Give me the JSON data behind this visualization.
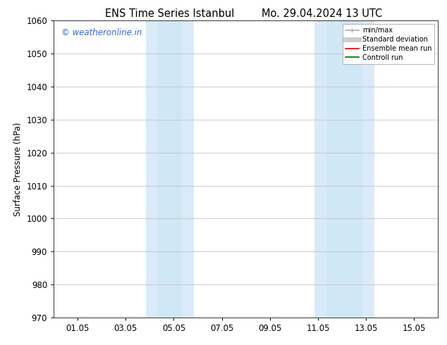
{
  "title_left": "ENS Time Series Istanbul",
  "title_right": "Mo. 29.04.2024 13 UTC",
  "ylabel": "Surface Pressure (hPa)",
  "ylim": [
    970,
    1060
  ],
  "yticks": [
    970,
    980,
    990,
    1000,
    1010,
    1020,
    1030,
    1040,
    1050,
    1060
  ],
  "xlim": [
    0,
    16
  ],
  "xtick_positions": [
    1,
    3,
    5,
    7,
    9,
    11,
    13,
    15
  ],
  "xtick_labels": [
    "01.05",
    "03.05",
    "05.05",
    "07.05",
    "09.05",
    "11.05",
    "13.05",
    "15.05"
  ],
  "shaded_bands": [
    {
      "xmin": 3.85,
      "xmax": 4.35,
      "color": "#daeaf8"
    },
    {
      "xmin": 4.35,
      "xmax": 5.35,
      "color": "#d0e8f5"
    },
    {
      "xmin": 5.35,
      "xmax": 5.85,
      "color": "#daeaf8"
    },
    {
      "xmin": 10.85,
      "xmax": 11.35,
      "color": "#daeaf8"
    },
    {
      "xmin": 11.35,
      "xmax": 12.85,
      "color": "#d0e8f5"
    },
    {
      "xmin": 12.85,
      "xmax": 13.35,
      "color": "#daeaf8"
    }
  ],
  "watermark_text": "© weatheronline.in",
  "watermark_color": "#3366cc",
  "legend_items": [
    {
      "label": "min/max",
      "color": "#aaaaaa",
      "lw": 1.2
    },
    {
      "label": "Standard deviation",
      "color": "#cccccc",
      "lw": 5
    },
    {
      "label": "Ensemble mean run",
      "color": "#dd0000",
      "lw": 1.2
    },
    {
      "label": "Controll run",
      "color": "#006600",
      "lw": 1.2
    }
  ],
  "bg_color": "#ffffff",
  "grid_color": "#bbbbbb",
  "font_size": 8.5,
  "title_font_size": 10.5
}
